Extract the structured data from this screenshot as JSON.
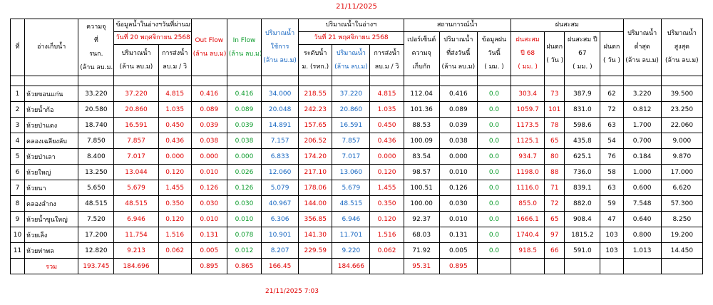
{
  "date": "21/11/2025",
  "timestamp": "21/11/2025 7:03",
  "table": {
    "header": {
      "no": "ที่",
      "name": "อ่างเก็บน้ำ",
      "capacity": [
        "ความจุ",
        "ที่",
        "รนก.",
        "(ล้าน ลบ.ม.)"
      ],
      "prev_title": "ข้อมูลน้ำในอ่างฯวันที่ผ่านมา",
      "prev_date": "วันที่ 20 พฤศจิกายน 2568",
      "prev_volume": [
        "ปริมาณน้ำ",
        "(ล้าน ลบ.ม)"
      ],
      "prev_release": [
        "การส่งน้ำ",
        "ลบ.ม / วิ"
      ],
      "outflow": [
        "Out Flow",
        "(ล้าน ลบ.ม)"
      ],
      "inflow": [
        "In Flow",
        "(ล้าน ลบ.ม)"
      ],
      "usable": [
        "ปริมาณน้ำ",
        "ใช้การ",
        "(ล้าน ลบ.ม)"
      ],
      "cur_title": "ปริมาณน้ำในอ่างฯ",
      "cur_date": "วันที่ 21 พฤศจิกายน 2568",
      "cur_level": [
        "ระดับน้ำ",
        "ม. (รทก.)"
      ],
      "cur_volume": [
        "ปริมาณน้ำ",
        "(ล้าน ลบ.ม)"
      ],
      "cur_release": [
        "การส่งน้ำ",
        "ลบ.ม / วิ"
      ],
      "status_title": "สถานการณ์น้ำ",
      "percent": [
        "เปอร์เซ็นต์",
        "ความจุ",
        "เก็บกัก"
      ],
      "sent_today": [
        "ปริมาณน้ำ",
        "ที่ส่งวันนี้",
        "(ล้าน ลบ.ม)"
      ],
      "rain_today": [
        "ข้อมูลฝน",
        "วันนี้",
        "( มม. )"
      ],
      "rain_title": "ฝนสะสม",
      "rain68": [
        "ฝนสะสม",
        "ปี 68",
        "( มม. )"
      ],
      "days68": [
        "ฝนตก",
        "( วัน )"
      ],
      "rain67": [
        "ฝนสะสม ปี",
        "67",
        "( มม. )"
      ],
      "days67": [
        "ฝนตก",
        "( วัน )"
      ],
      "min": [
        "ปริมาณน้ำ",
        "ต่ำสุด",
        "(ล้าน ลบ.ม)"
      ],
      "max": [
        "ปริมาณน้ำ",
        "สูงสุด",
        "(ล้าน ลบ.ม)"
      ]
    },
    "rows": [
      [
        "1",
        "ห้วยขอนแก่น",
        "33.220",
        "37.220",
        "4.815",
        "0.416",
        "0.416",
        "34.000",
        "218.55",
        "37.220",
        "4.815",
        "112.04",
        "0.416",
        "0.0",
        "303.4",
        "73",
        "387.9",
        "62",
        "3.220",
        "39.500"
      ],
      [
        "2",
        "ห้วยน้ำก้อ",
        "20.580",
        "20.860",
        "1.035",
        "0.089",
        "0.089",
        "20.048",
        "242.23",
        "20.860",
        "1.035",
        "101.36",
        "0.089",
        "0.0",
        "1059.7",
        "101",
        "831.0",
        "72",
        "0.812",
        "23.250"
      ],
      [
        "3",
        "ห้วยป่าแดง",
        "18.740",
        "16.591",
        "0.450",
        "0.039",
        "0.039",
        "14.891",
        "157.65",
        "16.591",
        "0.450",
        "88.53",
        "0.039",
        "0.0",
        "1173.5",
        "78",
        "598.6",
        "63",
        "1.700",
        "22.060"
      ],
      [
        "4",
        "คลองเฉลียงลับ",
        "7.850",
        "7.857",
        "0.436",
        "0.038",
        "0.038",
        "7.157",
        "206.52",
        "7.857",
        "0.436",
        "100.09",
        "0.038",
        "0.0",
        "1125.1",
        "65",
        "435.8",
        "54",
        "0.700",
        "9.000"
      ],
      [
        "5",
        "ห้วยป่าเลา",
        "8.400",
        "7.017",
        "0.000",
        "0.000",
        "0.000",
        "6.833",
        "174.20",
        "7.017",
        "0.000",
        "83.54",
        "0.000",
        "0.0",
        "934.7",
        "80",
        "625.1",
        "76",
        "0.184",
        "9.870"
      ],
      [
        "6",
        "ห้วยใหญ่",
        "13.250",
        "13.044",
        "0.120",
        "0.010",
        "0.026",
        "12.060",
        "217.10",
        "13.060",
        "0.120",
        "98.57",
        "0.010",
        "0.0",
        "1198.0",
        "88",
        "736.0",
        "58",
        "1.000",
        "17.000"
      ],
      [
        "7",
        "ห้วยนา",
        "5.650",
        "5.679",
        "1.455",
        "0.126",
        "0.126",
        "5.079",
        "178.06",
        "5.679",
        "1.455",
        "100.51",
        "0.126",
        "0.0",
        "1116.0",
        "71",
        "839.1",
        "63",
        "0.600",
        "6.620"
      ],
      [
        "8",
        "คลองลำกง",
        "48.515",
        "48.515",
        "0.350",
        "0.030",
        "0.030",
        "40.967",
        "144.00",
        "48.515",
        "0.350",
        "100.00",
        "0.030",
        "0.0",
        "855.0",
        "72",
        "882.0",
        "59",
        "7.548",
        "57.300"
      ],
      [
        "9",
        "ห้วยน้ำขุนใหญ่",
        "7.520",
        "6.946",
        "0.120",
        "0.010",
        "0.010",
        "6.306",
        "356.85",
        "6.946",
        "0.120",
        "92.37",
        "0.010",
        "0.0",
        "1666.1",
        "65",
        "908.4",
        "47",
        "0.640",
        "8.250"
      ],
      [
        "10",
        "ห้วยเล็ง",
        "17.200",
        "11.754",
        "1.516",
        "0.131",
        "0.078",
        "10.901",
        "141.30",
        "11.701",
        "1.516",
        "68.03",
        "0.131",
        "0.0",
        "1740.4",
        "97",
        "1815.2",
        "103",
        "0.800",
        "19.200"
      ],
      [
        "11",
        "ห้วยท่าพล",
        "12.820",
        "9.213",
        "0.062",
        "0.005",
        "0.012",
        "8.207",
        "229.59",
        "9.220",
        "0.062",
        "71.92",
        "0.005",
        "0.0",
        "918.5",
        "66",
        "591.0",
        "103",
        "1.013",
        "14.450"
      ]
    ],
    "total": [
      null,
      "รวม",
      "193.745",
      "184.696",
      null,
      "0.895",
      "0.865",
      "166.45",
      null,
      "184.666",
      null,
      "95.31",
      "0.895",
      null,
      null,
      null,
      null,
      null,
      null,
      null
    ]
  }
}
